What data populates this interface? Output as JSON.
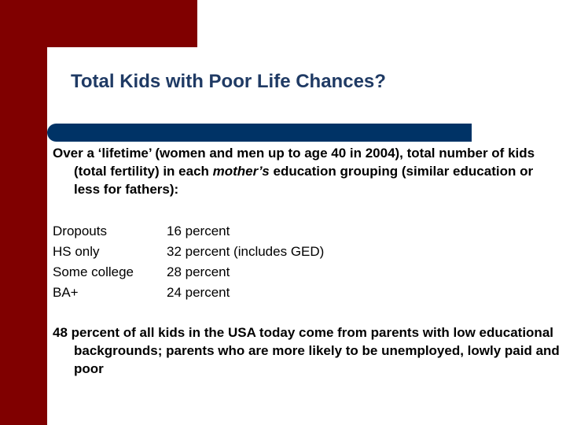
{
  "title": "Total Kids with Poor Life Chances?",
  "intro": {
    "part1": "Over a ‘lifetime’ (women and men up to age 40 in 2004), total number of kids (total fertility) in each ",
    "italic": "mother’s",
    "part2": " education grouping (similar education or less for fathers):"
  },
  "rows": [
    {
      "category": "Dropouts",
      "value": "16 percent"
    },
    {
      "category": "HS only",
      "value": "32 percent (includes GED)"
    },
    {
      "category": "Some college",
      "value": "28 percent"
    },
    {
      "category": "BA+",
      "value": "24 percent"
    }
  ],
  "summary": " 48 percent of  all kids in the USA today come from parents with low educational backgrounds; parents who are more likely  to be unemployed, lowly paid and poor",
  "colors": {
    "accent": "#800000",
    "bar": "#003366",
    "title": "#1f3a64"
  }
}
